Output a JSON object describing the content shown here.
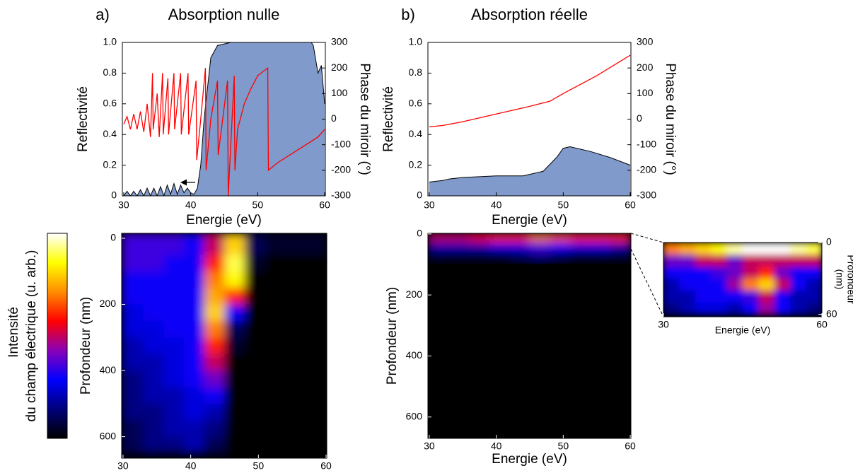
{
  "chart_data": [
    {
      "type": "area-line",
      "label": "a)",
      "title": "Absorption nulle",
      "xlabel": "Energie (eV)",
      "ylabel": "Reflectivité",
      "y2label": "Phase du miroir (°)",
      "xlim": [
        29.8,
        60.1
      ],
      "xticks": [
        30,
        40,
        50,
        60
      ],
      "ylim": [
        0,
        1
      ],
      "yticks": [
        0,
        0.2,
        0.4,
        0.6,
        0.8,
        {
          "value": 1,
          "label": "1.0"
        }
      ],
      "y2lim": [
        -300,
        300
      ],
      "y2ticks": [
        -300,
        -200,
        -100,
        0,
        100,
        200,
        300
      ],
      "series": [
        {
          "color": "#7f9acb",
          "x": [
            30,
            30.5,
            31,
            31.5,
            32,
            32.5,
            33,
            33.5,
            34,
            34.5,
            35,
            35.5,
            36,
            36.5,
            37,
            37.5,
            38,
            38.5,
            39,
            39.5,
            40,
            40.5,
            41,
            41.5,
            42,
            42.5,
            43,
            44,
            46,
            50,
            55,
            58,
            58.3,
            59,
            59.5,
            60
          ],
          "values": [
            0,
            0.03,
            0,
            0.03,
            0,
            0.04,
            0,
            0.05,
            0,
            0.05,
            0,
            0.06,
            0,
            0.07,
            0.01,
            0.08,
            0.01,
            0.07,
            0.02,
            0.05,
            0.02,
            0.01,
            0.05,
            0.2,
            0.5,
            0.7,
            0.9,
            0.98,
            1,
            1,
            1,
            1,
            0.98,
            0.8,
            0.85,
            0.6
          ]
        },
        {
          "color": "#ff0000",
          "axis": "y2",
          "x": [
            30,
            30.5,
            31,
            31.5,
            32,
            32.5,
            33,
            33.5,
            34,
            34.3,
            34.4,
            35,
            35.3,
            35.8,
            35.9,
            36.6,
            36.7,
            37.5,
            37.6,
            38.5,
            38.6,
            39.6,
            39.7,
            40.8,
            40.9,
            41.5,
            42.2,
            42.3,
            43,
            44,
            44.1,
            45.5,
            45.6,
            46.5,
            46.6,
            47,
            48,
            49,
            50,
            51.5,
            51.6,
            53,
            56,
            59,
            60
          ],
          "values": [
            -20,
            10,
            -40,
            20,
            -40,
            30,
            -50,
            60,
            -70,
            180,
            -40,
            100,
            -70,
            180,
            -60,
            160,
            -60,
            180,
            -40,
            180,
            -60,
            180,
            -60,
            150,
            -160,
            0,
            200,
            -200,
            0,
            150,
            -140,
            150,
            -300,
            170,
            -200,
            -40,
            60,
            120,
            170,
            200,
            -200,
            -170,
            -120,
            -70,
            -40
          ]
        }
      ]
    },
    {
      "type": "area-line",
      "label": "b)",
      "title": "Absorption réelle",
      "xlabel": "Energie (eV)",
      "ylabel": "Reflectivité",
      "y2label": "Phase du miroir (°)",
      "xlim": [
        29.8,
        60.1
      ],
      "xticks": [
        30,
        40,
        50,
        60
      ],
      "ylim": [
        0,
        1
      ],
      "yticks": [
        0,
        0.2,
        0.4,
        0.6,
        0.8,
        {
          "value": 1,
          "label": "1.0"
        }
      ],
      "y2lim": [
        -300,
        300
      ],
      "y2ticks": [
        -300,
        -200,
        -100,
        0,
        100,
        200,
        300
      ],
      "series": [
        {
          "color": "#7f9acb",
          "x": [
            30,
            32,
            33,
            35,
            40,
            44,
            47,
            49,
            50,
            51,
            54,
            57,
            60
          ],
          "values": [
            0.09,
            0.1,
            0.11,
            0.12,
            0.13,
            0.13,
            0.16,
            0.25,
            0.31,
            0.32,
            0.29,
            0.25,
            0.2
          ]
        },
        {
          "color": "#ff0000",
          "axis": "y2",
          "x": [
            30,
            32,
            35,
            40,
            45,
            48,
            50,
            55,
            60
          ],
          "values": [
            -30,
            -25,
            -10,
            20,
            50,
            70,
            100,
            170,
            250
          ]
        }
      ]
    },
    {
      "type": "heatmap",
      "xlabel": "Energie (eV)",
      "ylabel": "Profondeur (nm)",
      "colorbar_label": [
        "Intensité",
        "du champ électrique (u. arb.)"
      ],
      "colormap": [
        "#000000",
        "#00007a",
        "#0000ff",
        "#8a00b8",
        "#ff0000",
        "#ff8c00",
        "#ffff00",
        "#ffffff"
      ],
      "xlim": [
        29.8,
        60.1
      ],
      "xticks": [
        30,
        40,
        50,
        60
      ],
      "ylim": [
        -15,
        665
      ],
      "yticks": [
        0,
        200,
        400,
        600
      ],
      "x": [
        31.5,
        34.5,
        37.5,
        40.5,
        43.5,
        46.5,
        49.5,
        52.5,
        55.5,
        58.5
      ],
      "y": [
        25,
        75,
        125,
        175,
        225,
        275,
        325,
        375,
        425,
        475,
        525,
        575,
        625
      ],
      "z": [
        [
          0.35,
          0.35,
          0.35,
          0.3,
          0.5,
          0.8,
          0.1,
          0.05,
          0.05,
          0.05
        ],
        [
          0.35,
          0.35,
          0.3,
          0.3,
          0.6,
          0.9,
          0.05,
          0,
          0,
          0
        ],
        [
          0.3,
          0.3,
          0.3,
          0.3,
          0.7,
          0.85,
          0,
          0,
          0,
          0
        ],
        [
          0.3,
          0.3,
          0.3,
          0.3,
          0.75,
          0.6,
          0,
          0,
          0,
          0
        ],
        [
          0.25,
          0.3,
          0.3,
          0.3,
          0.8,
          0.3,
          0,
          0,
          0,
          0
        ],
        [
          0.25,
          0.25,
          0.3,
          0.3,
          0.7,
          0.1,
          0,
          0,
          0,
          0
        ],
        [
          0.2,
          0.25,
          0.25,
          0.3,
          0.6,
          0.05,
          0,
          0,
          0,
          0
        ],
        [
          0.2,
          0.2,
          0.25,
          0.3,
          0.5,
          0,
          0,
          0,
          0,
          0
        ],
        [
          0.15,
          0.2,
          0.25,
          0.3,
          0.4,
          0,
          0,
          0,
          0,
          0
        ],
        [
          0.15,
          0.2,
          0.2,
          0.25,
          0.3,
          0,
          0,
          0,
          0,
          0
        ],
        [
          0.15,
          0.15,
          0.2,
          0.25,
          0.2,
          0,
          0,
          0,
          0,
          0
        ],
        [
          0.1,
          0.15,
          0.2,
          0.2,
          0.15,
          0,
          0,
          0,
          0,
          0
        ],
        [
          0.1,
          0.15,
          0.15,
          0.2,
          0.1,
          0,
          0,
          0,
          0,
          0
        ]
      ]
    },
    {
      "type": "heatmap",
      "xlabel": "Energie (eV)",
      "ylabel": "Profondeur (nm)",
      "colormap": [
        "#000000",
        "#00007a",
        "#0000ff",
        "#8a00b8",
        "#ff0000",
        "#ff8c00",
        "#ffff00",
        "#ffffff"
      ],
      "xlim": [
        29.8,
        60.1
      ],
      "xticks": [
        30,
        40,
        50,
        60
      ],
      "ylim": [
        -2,
        670
      ],
      "yticks": [
        0,
        200,
        400,
        600
      ],
      "x": [
        31.5,
        34.5,
        37.5,
        40.5,
        43.5,
        46.5,
        49.5,
        52.5,
        55.5,
        58.5
      ],
      "y": [
        10,
        40,
        75
      ],
      "z": [
        [
          0.5,
          0.5,
          0.55,
          0.6,
          0.6,
          0.7,
          0.65,
          0.6,
          0.6,
          0.6
        ],
        [
          0.2,
          0.2,
          0.2,
          0.25,
          0.25,
          0.35,
          0.3,
          0.25,
          0.25,
          0.2
        ],
        [
          0.05,
          0.05,
          0.05,
          0.05,
          0.1,
          0.15,
          0.1,
          0.05,
          0.05,
          0.05
        ]
      ]
    },
    {
      "type": "heatmap",
      "xlabel": "Energie (eV)",
      "ylabel": [
        "Profondeur",
        "(nm)"
      ],
      "yaxis_side": "right",
      "colormap": [
        "#000000",
        "#00007a",
        "#0000ff",
        "#8a00b8",
        "#ff0000",
        "#ff8c00",
        "#ffff00",
        "#ffffff"
      ],
      "xlim": [
        30,
        60
      ],
      "xticks": [
        30,
        60
      ],
      "ylim": [
        0,
        62
      ],
      "yticks": [
        0,
        60
      ],
      "x": [
        31.5,
        34.5,
        37.5,
        40.5,
        43.5,
        46.5,
        49.5,
        52.5,
        55.5,
        58.5
      ],
      "y": [
        5,
        15,
        25,
        35,
        45,
        55
      ],
      "z": [
        [
          0.7,
          0.75,
          0.8,
          0.85,
          0.95,
          1,
          1,
          1,
          0.95,
          0.9
        ],
        [
          0.4,
          0.4,
          0.5,
          0.5,
          0.4,
          0.5,
          0.5,
          0.5,
          0.5,
          0.5
        ],
        [
          0.3,
          0.3,
          0.3,
          0.35,
          0.4,
          0.5,
          0.6,
          0.4,
          0.3,
          0.3
        ],
        [
          0.2,
          0.3,
          0.3,
          0.3,
          0.45,
          0.7,
          0.8,
          0.5,
          0.3,
          0.2
        ],
        [
          0.2,
          0.2,
          0.3,
          0.3,
          0.3,
          0.35,
          0.5,
          0.3,
          0.2,
          0.2
        ],
        [
          0.15,
          0.2,
          0.25,
          0.25,
          0.2,
          0.3,
          0.45,
          0.3,
          0.2,
          0.15
        ]
      ]
    }
  ]
}
